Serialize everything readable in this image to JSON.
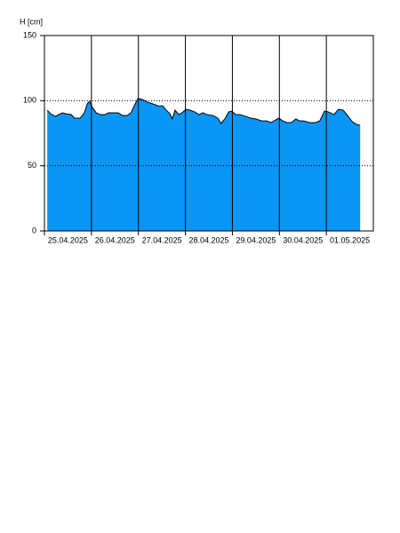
{
  "chart_data": {
    "type": "area",
    "y_label": "H [cm]",
    "x": [
      0.06,
      0.13,
      0.23,
      0.3,
      0.38,
      0.45,
      0.57,
      0.64,
      0.76,
      0.85,
      0.91,
      0.96,
      1.02,
      1.1,
      1.19,
      1.29,
      1.36,
      1.48,
      1.57,
      1.66,
      1.76,
      1.84,
      1.91,
      1.99,
      2.08,
      2.19,
      2.31,
      2.42,
      2.52,
      2.59,
      2.67,
      2.72,
      2.78,
      2.86,
      2.93,
      3.01,
      3.1,
      3.2,
      3.29,
      3.37,
      3.46,
      3.59,
      3.69,
      3.76,
      3.84,
      3.92,
      3.99,
      4.07,
      4.16,
      4.28,
      4.39,
      4.5,
      4.62,
      4.73,
      4.82,
      4.92,
      4.99,
      5.07,
      5.16,
      5.26,
      5.35,
      5.43,
      5.52,
      5.64,
      5.77,
      5.86,
      5.96,
      6.05,
      6.16,
      6.26,
      6.36,
      6.45,
      6.55,
      6.64,
      6.72
    ],
    "values": [
      92.7,
      90,
      88,
      89.3,
      90.7,
      90,
      89.3,
      86.6,
      86.6,
      90.7,
      97.5,
      99.5,
      94.8,
      90.7,
      89.3,
      89.3,
      90.7,
      90.7,
      90.7,
      88.6,
      88.6,
      90.7,
      96,
      101.6,
      101,
      98.9,
      97.5,
      96,
      96,
      92.7,
      90,
      86,
      92.7,
      89.3,
      90.7,
      93.4,
      92.7,
      91.3,
      89.3,
      90.7,
      89.3,
      88.6,
      86.6,
      82.5,
      86,
      91.3,
      92,
      89.3,
      89.3,
      88,
      86.6,
      86,
      84.5,
      84.5,
      83.2,
      85.2,
      86.6,
      84.5,
      83.2,
      83.2,
      86,
      84.5,
      84.5,
      83.2,
      83.2,
      84.5,
      92,
      91.3,
      89.3,
      93.4,
      92.7,
      88.6,
      84,
      81.8,
      81.1
    ],
    "color": "#0a96f5",
    "xlim": [
      0,
      7
    ],
    "xticks": [
      {
        "value": 0,
        "label": "25.04.2025"
      },
      {
        "value": 1,
        "label": "26.04.2025"
      },
      {
        "value": 2,
        "label": "27.04.2025"
      },
      {
        "value": 3,
        "label": "28.04.2025"
      },
      {
        "value": 4,
        "label": "29.04.2025"
      },
      {
        "value": 5,
        "label": "30.04.2025"
      },
      {
        "value": 6,
        "label": "01.05.2025"
      }
    ],
    "ylim": [
      0,
      150
    ],
    "yticks": [
      0,
      50,
      100,
      150
    ],
    "grid": true
  }
}
